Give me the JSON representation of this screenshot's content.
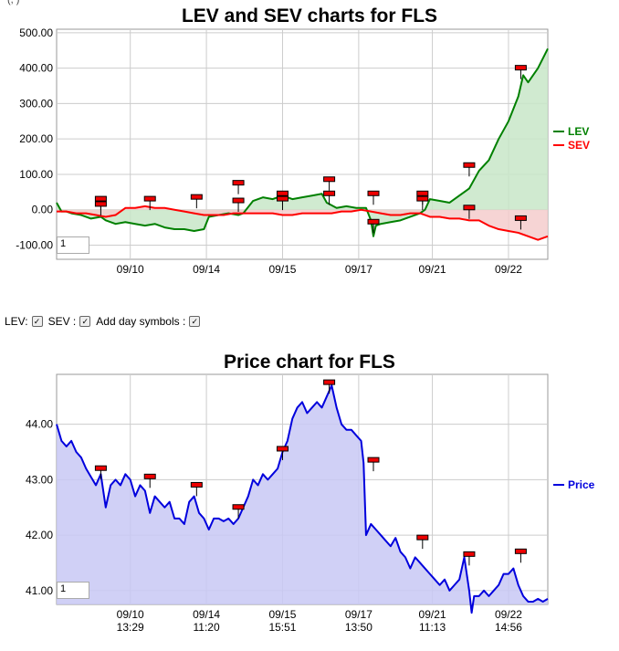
{
  "top_chart": {
    "title": "LEV and SEV charts for FLS",
    "zoom_value": "1",
    "clipped_top_text": "(,           )",
    "legend": [
      {
        "label": "LEV",
        "color": "#008000"
      },
      {
        "label": "SEV",
        "color": "#ff0000"
      }
    ]
  },
  "controls": {
    "lev_label": "LEV:",
    "sev_label": "SEV :",
    "day_symbols_label": "Add day symbols :"
  },
  "bottom_chart": {
    "title": "Price chart for FLS",
    "zoom_value": "1",
    "legend": [
      {
        "label": "Price",
        "color": "#0000dd"
      }
    ]
  },
  "chart_data": [
    {
      "type": "area",
      "title": "LEV and SEV charts for FLS",
      "xlabel": "",
      "ylabel": "",
      "ylim": [
        -140,
        510
      ],
      "yticks": [
        500,
        400,
        300,
        200,
        100,
        0,
        -100
      ],
      "ytick_labels": [
        "500.00",
        "400.00",
        "300.00",
        "200.00",
        "100.00",
        "0.00",
        "-100.00"
      ],
      "xticks": [
        {
          "x": 0.15,
          "label1": "09/10",
          "label2": "13:29"
        },
        {
          "x": 0.305,
          "label1": "09/14",
          "label2": "11:20"
        },
        {
          "x": 0.46,
          "label1": "09/15",
          "label2": "15:51"
        },
        {
          "x": 0.615,
          "label1": "09/17",
          "label2": "13:50"
        },
        {
          "x": 0.765,
          "label1": "09/21",
          "label2": "11:13"
        },
        {
          "x": 0.92,
          "label1": "09/22",
          "label2": "14:56"
        }
      ],
      "grid": true,
      "legend_position": "right",
      "series": [
        {
          "name": "LEV",
          "color": "#008000",
          "fill": "#c8e6c8",
          "x": [
            0,
            0.01,
            0.02,
            0.03,
            0.05,
            0.07,
            0.09,
            0.1,
            0.12,
            0.14,
            0.16,
            0.18,
            0.2,
            0.22,
            0.24,
            0.26,
            0.28,
            0.3,
            0.31,
            0.33,
            0.35,
            0.37,
            0.38,
            0.4,
            0.42,
            0.44,
            0.46,
            0.48,
            0.5,
            0.52,
            0.54,
            0.55,
            0.57,
            0.59,
            0.61,
            0.63,
            0.64,
            0.645,
            0.65,
            0.66,
            0.68,
            0.7,
            0.72,
            0.74,
            0.75,
            0.76,
            0.78,
            0.8,
            0.82,
            0.84,
            0.86,
            0.88,
            0.9,
            0.92,
            0.94,
            0.95,
            0.96,
            0.98,
            1.0
          ],
          "y": [
            20,
            -5,
            -5,
            -10,
            -15,
            -25,
            -20,
            -30,
            -40,
            -35,
            -40,
            -45,
            -40,
            -50,
            -55,
            -55,
            -60,
            -55,
            -20,
            -15,
            -10,
            -15,
            -10,
            25,
            35,
            30,
            40,
            30,
            35,
            40,
            45,
            20,
            5,
            10,
            5,
            5,
            -30,
            -75,
            -45,
            -40,
            -35,
            -30,
            -20,
            -10,
            0,
            30,
            25,
            20,
            40,
            60,
            110,
            140,
            200,
            250,
            320,
            380,
            360,
            400,
            455
          ]
        },
        {
          "name": "SEV",
          "color": "#ff0000",
          "fill": "#f5cccc",
          "x": [
            0,
            0.02,
            0.04,
            0.06,
            0.08,
            0.1,
            0.12,
            0.14,
            0.16,
            0.18,
            0.2,
            0.22,
            0.24,
            0.26,
            0.28,
            0.3,
            0.32,
            0.34,
            0.36,
            0.38,
            0.4,
            0.42,
            0.44,
            0.46,
            0.48,
            0.5,
            0.52,
            0.54,
            0.56,
            0.58,
            0.6,
            0.62,
            0.64,
            0.66,
            0.68,
            0.7,
            0.72,
            0.74,
            0.76,
            0.78,
            0.8,
            0.82,
            0.84,
            0.86,
            0.88,
            0.9,
            0.92,
            0.94,
            0.96,
            0.98,
            1.0
          ],
          "y": [
            -5,
            -5,
            -10,
            -10,
            -15,
            -20,
            -15,
            5,
            5,
            10,
            5,
            5,
            0,
            -5,
            -10,
            -15,
            -15,
            -15,
            -10,
            -10,
            -10,
            -10,
            -10,
            -15,
            -15,
            -10,
            -10,
            -10,
            -10,
            -5,
            -5,
            0,
            -5,
            -10,
            -15,
            -15,
            -10,
            -10,
            -20,
            -20,
            -25,
            -25,
            -30,
            -30,
            -45,
            -55,
            -60,
            -65,
            -75,
            -85,
            -75
          ]
        }
      ],
      "day_markers": [
        {
          "x": 0.09,
          "y": 30
        },
        {
          "x": 0.09,
          "y": 15
        },
        {
          "x": 0.19,
          "y": 30
        },
        {
          "x": 0.285,
          "y": 35
        },
        {
          "x": 0.37,
          "y": 75
        },
        {
          "x": 0.37,
          "y": 25
        },
        {
          "x": 0.46,
          "y": 45
        },
        {
          "x": 0.46,
          "y": 30
        },
        {
          "x": 0.555,
          "y": 85
        },
        {
          "x": 0.555,
          "y": 45
        },
        {
          "x": 0.645,
          "y": 45
        },
        {
          "x": 0.645,
          "y": -35
        },
        {
          "x": 0.745,
          "y": 45
        },
        {
          "x": 0.745,
          "y": 30
        },
        {
          "x": 0.84,
          "y": 125
        },
        {
          "x": 0.84,
          "y": 5
        },
        {
          "x": 0.945,
          "y": 400
        },
        {
          "x": 0.945,
          "y": -25
        }
      ]
    },
    {
      "type": "area",
      "title": "Price chart for FLS",
      "xlabel": "",
      "ylabel": "",
      "ylim": [
        40.75,
        44.9
      ],
      "yticks": [
        44.0,
        43.0,
        42.0,
        41.0
      ],
      "ytick_labels": [
        "44.00",
        "43.00",
        "42.00",
        "41.00"
      ],
      "xticks": [
        {
          "x": 0.15,
          "label1": "09/10",
          "label2": "13:29"
        },
        {
          "x": 0.305,
          "label1": "09/14",
          "label2": "11:20"
        },
        {
          "x": 0.46,
          "label1": "09/15",
          "label2": "15:51"
        },
        {
          "x": 0.615,
          "label1": "09/17",
          "label2": "13:50"
        },
        {
          "x": 0.765,
          "label1": "09/21",
          "label2": "11:13"
        },
        {
          "x": 0.92,
          "label1": "09/22",
          "label2": "14:56"
        }
      ],
      "grid": true,
      "legend_position": "right",
      "series": [
        {
          "name": "Price",
          "color": "#0000dd",
          "fill": "#c8c8f5",
          "x": [
            0,
            0.01,
            0.02,
            0.03,
            0.04,
            0.05,
            0.06,
            0.07,
            0.08,
            0.09,
            0.1,
            0.11,
            0.12,
            0.13,
            0.14,
            0.15,
            0.16,
            0.17,
            0.18,
            0.19,
            0.2,
            0.21,
            0.22,
            0.23,
            0.24,
            0.25,
            0.26,
            0.27,
            0.28,
            0.29,
            0.3,
            0.31,
            0.32,
            0.33,
            0.34,
            0.35,
            0.36,
            0.37,
            0.38,
            0.39,
            0.4,
            0.41,
            0.42,
            0.43,
            0.44,
            0.45,
            0.46,
            0.47,
            0.48,
            0.49,
            0.5,
            0.51,
            0.52,
            0.53,
            0.54,
            0.55,
            0.56,
            0.57,
            0.58,
            0.59,
            0.6,
            0.61,
            0.62,
            0.625,
            0.63,
            0.64,
            0.65,
            0.66,
            0.67,
            0.68,
            0.69,
            0.7,
            0.71,
            0.72,
            0.73,
            0.74,
            0.75,
            0.76,
            0.77,
            0.78,
            0.79,
            0.8,
            0.81,
            0.82,
            0.83,
            0.84,
            0.845,
            0.85,
            0.86,
            0.87,
            0.88,
            0.89,
            0.9,
            0.91,
            0.92,
            0.93,
            0.94,
            0.95,
            0.96,
            0.97,
            0.98,
            0.99,
            1.0
          ],
          "y": [
            44.0,
            43.7,
            43.6,
            43.7,
            43.5,
            43.4,
            43.2,
            43.05,
            42.9,
            43.1,
            42.5,
            42.9,
            43.0,
            42.9,
            43.1,
            43.0,
            42.7,
            42.9,
            42.8,
            42.4,
            42.7,
            42.6,
            42.5,
            42.6,
            42.3,
            42.3,
            42.2,
            42.6,
            42.7,
            42.4,
            42.3,
            42.1,
            42.3,
            42.3,
            42.25,
            42.3,
            42.2,
            42.3,
            42.5,
            42.7,
            43.0,
            42.9,
            43.1,
            43.0,
            43.1,
            43.2,
            43.5,
            43.7,
            44.1,
            44.3,
            44.4,
            44.2,
            44.3,
            44.4,
            44.3,
            44.5,
            44.7,
            44.3,
            44.0,
            43.9,
            43.9,
            43.8,
            43.7,
            43.3,
            42.0,
            42.2,
            42.1,
            42.0,
            41.9,
            41.8,
            41.95,
            41.7,
            41.6,
            41.4,
            41.6,
            41.5,
            41.4,
            41.3,
            41.2,
            41.1,
            41.2,
            41.0,
            41.1,
            41.2,
            41.6,
            41.0,
            40.6,
            40.9,
            40.9,
            41.0,
            40.9,
            41.0,
            41.1,
            41.3,
            41.3,
            41.4,
            41.1,
            40.9,
            40.8,
            40.8,
            40.85,
            40.8,
            40.85
          ]
        }
      ],
      "day_markers": [
        {
          "x": 0.09,
          "y": 43.2
        },
        {
          "x": 0.19,
          "y": 43.05
        },
        {
          "x": 0.285,
          "y": 42.9
        },
        {
          "x": 0.37,
          "y": 42.5
        },
        {
          "x": 0.46,
          "y": 43.55
        },
        {
          "x": 0.555,
          "y": 44.75
        },
        {
          "x": 0.645,
          "y": 43.35
        },
        {
          "x": 0.745,
          "y": 41.95
        },
        {
          "x": 0.84,
          "y": 41.65
        },
        {
          "x": 0.945,
          "y": 41.7
        }
      ]
    }
  ]
}
